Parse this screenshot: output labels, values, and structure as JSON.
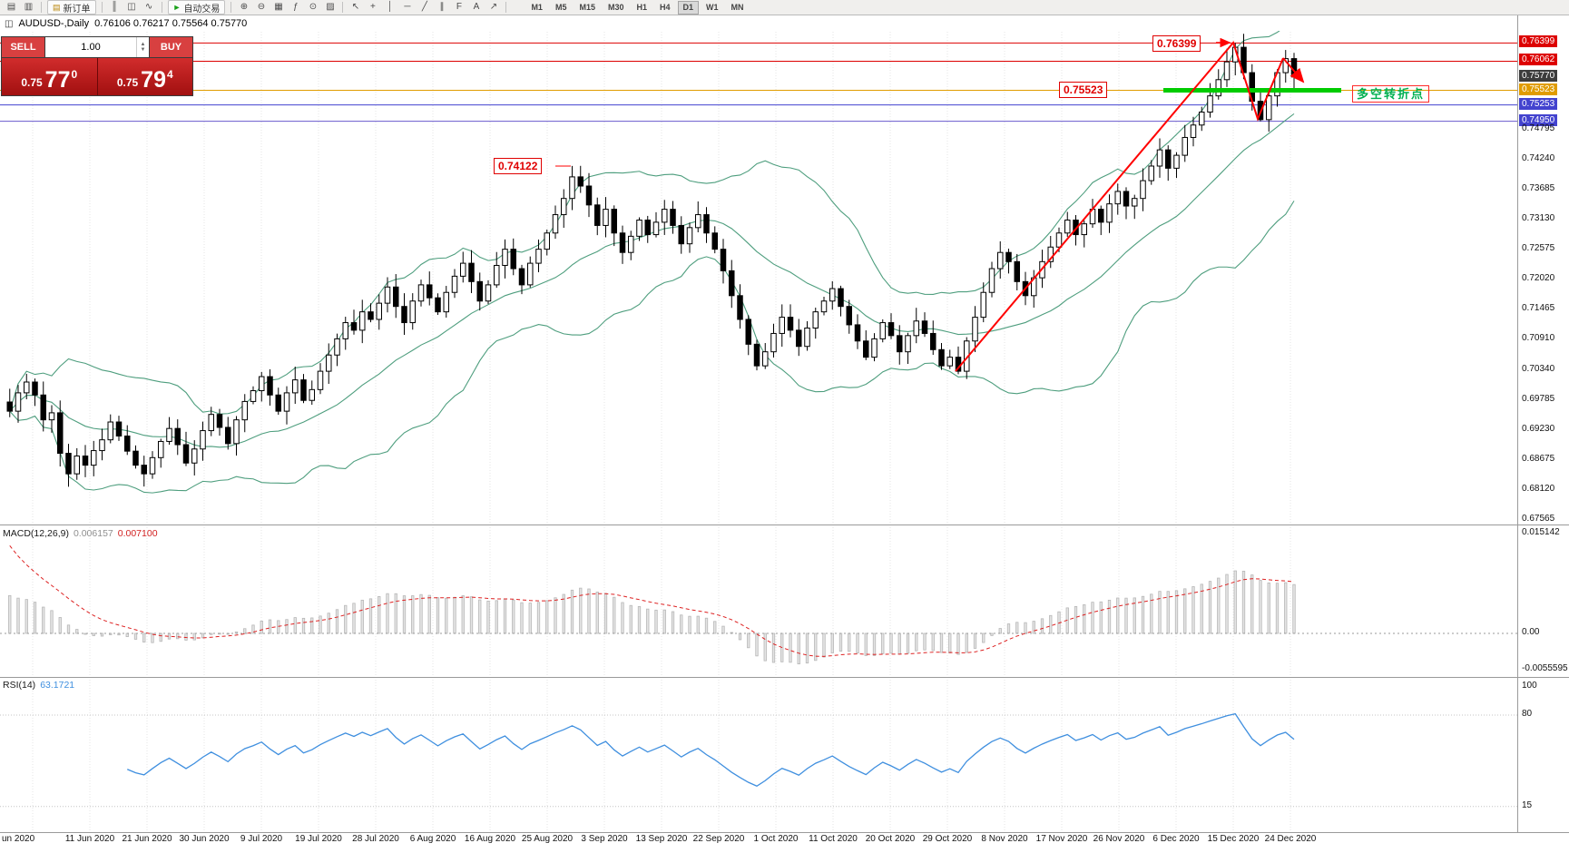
{
  "toolbar": {
    "items": [
      {
        "name": "new-chart-icon",
        "glyph": "▤"
      },
      {
        "name": "charts-list-icon",
        "glyph": "▥"
      },
      {
        "type": "sep"
      },
      {
        "type": "button",
        "name": "new-order-button",
        "glyph": "▤",
        "label": "新订单",
        "glyph_color": "#b8860b"
      },
      {
        "type": "sep"
      },
      {
        "name": "bar-chart-type-icon",
        "glyph": "║"
      },
      {
        "name": "candlestick-type-icon",
        "glyph": "◫"
      },
      {
        "name": "line-chart-type-icon",
        "glyph": "∿"
      },
      {
        "type": "sep"
      },
      {
        "type": "button",
        "name": "auto-trading-button",
        "glyph": "►",
        "label": "自动交易",
        "glyph_color": "#18a018"
      },
      {
        "type": "sep"
      },
      {
        "name": "zoom-in-icon",
        "glyph": "⊕"
      },
      {
        "name": "zoom-out-icon",
        "glyph": "⊖"
      },
      {
        "name": "tile-windows-icon",
        "glyph": "▦"
      },
      {
        "name": "indicators-icon",
        "glyph": "ƒ"
      },
      {
        "name": "periods-icon",
        "glyph": "⊙"
      },
      {
        "name": "templates-icon",
        "glyph": "▨"
      },
      {
        "type": "sep"
      },
      {
        "name": "cursor-icon",
        "glyph": "↖"
      },
      {
        "name": "crosshair-icon",
        "glyph": "+"
      },
      {
        "name": "vertical-line-icon",
        "glyph": "│"
      },
      {
        "name": "horizontal-line-icon",
        "glyph": "─"
      },
      {
        "name": "trendline-icon",
        "glyph": "╱"
      },
      {
        "name": "equidistant-channel-icon",
        "glyph": "∥"
      },
      {
        "name": "fibonacci-icon",
        "glyph": "F"
      },
      {
        "name": "text-label-icon",
        "glyph": "A"
      },
      {
        "name": "arrows-icon",
        "glyph": "↗"
      },
      {
        "type": "sep"
      }
    ],
    "timeframes": [
      "M1",
      "M5",
      "M15",
      "M30",
      "H1",
      "H4",
      "D1",
      "W1",
      "MN"
    ],
    "active_timeframe": "D1"
  },
  "symbol_bar": {
    "title": "AUDUSD-,Daily",
    "ohlc": "0.76106 0.76217 0.75564 0.75770"
  },
  "trade_panel": {
    "sell_label": "SELL",
    "buy_label": "BUY",
    "volume": "1.00",
    "price_prefix": "0.75",
    "sell_big": "77",
    "sell_sup": "0",
    "buy_big": "79",
    "buy_sup": "4"
  },
  "annotations": {
    "high_label": "0.76399",
    "support_label": "0.75523",
    "prev_high_label": "0.74122",
    "turning_point": "多空转折点",
    "trend_color": "#ff0000",
    "support_line_color": "#00cc00"
  },
  "indicators": {
    "macd_name": "MACD(12,26,9)",
    "macd_main": "0.006157",
    "macd_signal": "0.007100",
    "rsi_name": "RSI(14)",
    "rsi_value": "63.1721"
  },
  "chart_data": {
    "type": "candlestick",
    "symbol": "AUDUSD-",
    "timeframe": "Daily",
    "ohlc_display": {
      "open": "0.76106",
      "high": "0.76217",
      "low": "0.75564",
      "close": "0.75770"
    },
    "first_open": 0.6975,
    "closes": [
      0.6958,
      0.6992,
      0.7012,
      0.6988,
      0.6942,
      0.6955,
      0.688,
      0.6842,
      0.6875,
      0.6858,
      0.6885,
      0.6905,
      0.6938,
      0.6912,
      0.6884,
      0.6858,
      0.6842,
      0.6872,
      0.6902,
      0.6926,
      0.6896,
      0.6862,
      0.6888,
      0.6922,
      0.6952,
      0.6928,
      0.6898,
      0.6942,
      0.6976,
      0.6996,
      0.7022,
      0.6988,
      0.6958,
      0.6992,
      0.7016,
      0.6978,
      0.6998,
      0.7032,
      0.7062,
      0.7092,
      0.7122,
      0.7108,
      0.7142,
      0.7128,
      0.7158,
      0.7188,
      0.7152,
      0.7122,
      0.7162,
      0.7192,
      0.7168,
      0.7142,
      0.7178,
      0.7208,
      0.7232,
      0.7198,
      0.7162,
      0.7192,
      0.7228,
      0.7258,
      0.7222,
      0.7192,
      0.7232,
      0.7258,
      0.7288,
      0.7322,
      0.7352,
      0.7392,
      0.7375,
      0.734,
      0.7302,
      0.7332,
      0.7288,
      0.7252,
      0.7282,
      0.7312,
      0.7285,
      0.7308,
      0.7332,
      0.7302,
      0.7268,
      0.7298,
      0.7322,
      0.7288,
      0.7258,
      0.7218,
      0.7172,
      0.7128,
      0.7082,
      0.7042,
      0.7068,
      0.7102,
      0.7132,
      0.7108,
      0.7078,
      0.7112,
      0.7142,
      0.7162,
      0.7185,
      0.7152,
      0.7118,
      0.7088,
      0.7058,
      0.7092,
      0.7122,
      0.7098,
      0.7068,
      0.7098,
      0.7125,
      0.7102,
      0.7072,
      0.7042,
      0.7058,
      0.7032,
      0.7088,
      0.7132,
      0.7178,
      0.7222,
      0.7252,
      0.7235,
      0.7198,
      0.7172,
      0.7205,
      0.7235,
      0.7262,
      0.7288,
      0.7312,
      0.7285,
      0.7305,
      0.7332,
      0.7308,
      0.7342,
      0.7365,
      0.7338,
      0.7352,
      0.7385,
      0.7412,
      0.7442,
      0.7408,
      0.7432,
      0.7465,
      0.7488,
      0.7512,
      0.7542,
      0.7572,
      0.7605,
      0.7632,
      0.7585,
      0.7532,
      0.7498,
      0.7542,
      0.7585,
      0.7611,
      0.7577
    ],
    "wick_overrides": {
      "7": {
        "low": 0.6818
      },
      "67": {
        "high": 0.74122
      },
      "146": {
        "high": 0.76399
      },
      "149": {
        "low": 0.7495
      },
      "152": {
        "high": 0.7627
      },
      "153": {
        "high": 0.76217,
        "low": 0.75564
      }
    },
    "bollinger": {
      "period": 20,
      "deviation": 2,
      "color": "#4e9e7e"
    },
    "macd": {
      "fast": 12,
      "slow": 26,
      "signal": 9,
      "current_main": "0.006157",
      "current_signal": "0.007100"
    },
    "rsi": {
      "period": 14,
      "current": "63.1721",
      "levels": [
        80,
        15
      ]
    },
    "x_labels": [
      "un 2020",
      "11 Jun 2020",
      "21 Jun 2020",
      "30 Jun 2020",
      "9 Jul 2020",
      "19 Jul 2020",
      "28 Jul 2020",
      "6 Aug 2020",
      "16 Aug 2020",
      "25 Aug 2020",
      "3 Sep 2020",
      "13 Sep 2020",
      "22 Sep 2020",
      "1 Oct 2020",
      "11 Oct 2020",
      "20 Oct 2020",
      "29 Oct 2020",
      "8 Nov 2020",
      "17 Nov 2020",
      "26 Nov 2020",
      "6 Dec 2020",
      "15 Dec 2020",
      "24 Dec 2020"
    ],
    "price_axis_boxed": [
      {
        "text": "0.76399",
        "bg": "#dd0000"
      },
      {
        "text": "0.76062",
        "bg": "#dd0000"
      },
      {
        "text": "0.75770",
        "bg": "#3c3c3c"
      },
      {
        "text": "0.75523",
        "bg": "#e09c00"
      },
      {
        "text": "0.75253",
        "bg": "#4343cf"
      },
      {
        "text": "0.74950",
        "bg": "#4343cf"
      }
    ],
    "price_axis_plain": [
      "0.74795",
      "0.74240",
      "0.73685",
      "0.73130",
      "0.72575",
      "0.72020",
      "0.71465",
      "0.70910",
      "0.70340",
      "0.69785",
      "0.69230",
      "0.68675",
      "0.68120",
      "0.67565"
    ],
    "macd_axis": [
      "0.015142",
      "0.00",
      "-0.0055595"
    ],
    "rsi_axis": [
      "100",
      "80",
      "15"
    ],
    "levels": [
      {
        "price": 0.76399,
        "color": "#dd0000"
      },
      {
        "price": 0.76062,
        "color": "#dd0000"
      },
      {
        "price": 0.75523,
        "color": "#e09c00"
      },
      {
        "price": 0.75253,
        "color": "#4343cf"
      },
      {
        "price": 0.7495,
        "color": "#6a5acd"
      }
    ]
  }
}
